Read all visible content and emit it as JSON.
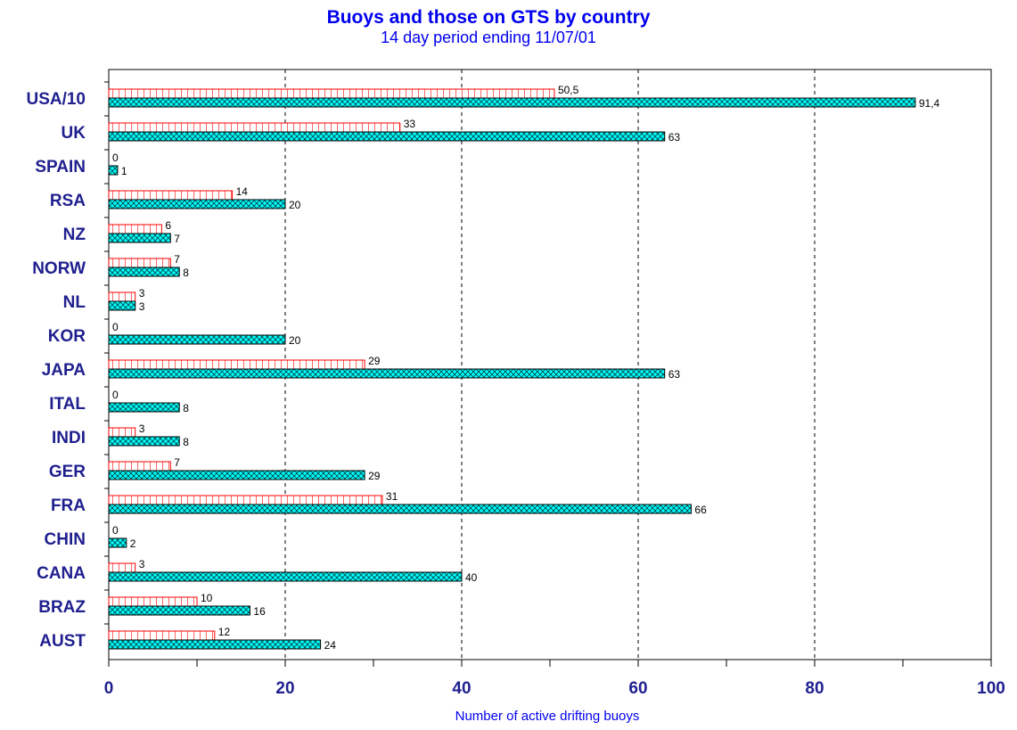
{
  "chart_data": {
    "type": "bar",
    "orientation": "horizontal",
    "title": "Buoys and those on GTS by country",
    "subtitle": "14 day period ending 11/07/01",
    "xlabel": "Number of active drifting buoys",
    "ylabel": "",
    "xlim": [
      0,
      100
    ],
    "xticks": [
      0,
      20,
      40,
      60,
      80,
      100
    ],
    "grid": "vertical dashed at 20, 40, 60, 80",
    "categories": [
      "USA/10",
      "UK",
      "SPAIN",
      "RSA",
      "NZ",
      "NORW",
      "NL",
      "KOR",
      "JAPA",
      "ITAL",
      "INDI",
      "GER",
      "FRA",
      "CHIN",
      "CANA",
      "BRAZ",
      "AUST"
    ],
    "series": [
      {
        "style": "white bar with red grid hatch",
        "color": "#ff0000",
        "values": [
          50.5,
          33,
          0,
          14,
          6,
          7,
          3,
          0,
          29,
          0,
          3,
          7,
          31,
          0,
          3,
          10,
          12
        ],
        "labels": [
          "50,5",
          "33",
          "0",
          "14",
          "6",
          "7",
          "3",
          "0",
          "29",
          "0",
          "3",
          "7",
          "31",
          "0",
          "3",
          "10",
          "12"
        ]
      },
      {
        "style": "cyan bar with cross hatch",
        "color": "#00ffff",
        "values": [
          91.4,
          63,
          1,
          20,
          7,
          8,
          3,
          20,
          63,
          8,
          8,
          29,
          66,
          2,
          40,
          16,
          24
        ],
        "labels": [
          "91,4",
          "63",
          "1",
          "20",
          "7",
          "8",
          "3",
          "20",
          "63",
          "8",
          "8",
          "29",
          "66",
          "2",
          "40",
          "16",
          "24"
        ]
      }
    ]
  }
}
